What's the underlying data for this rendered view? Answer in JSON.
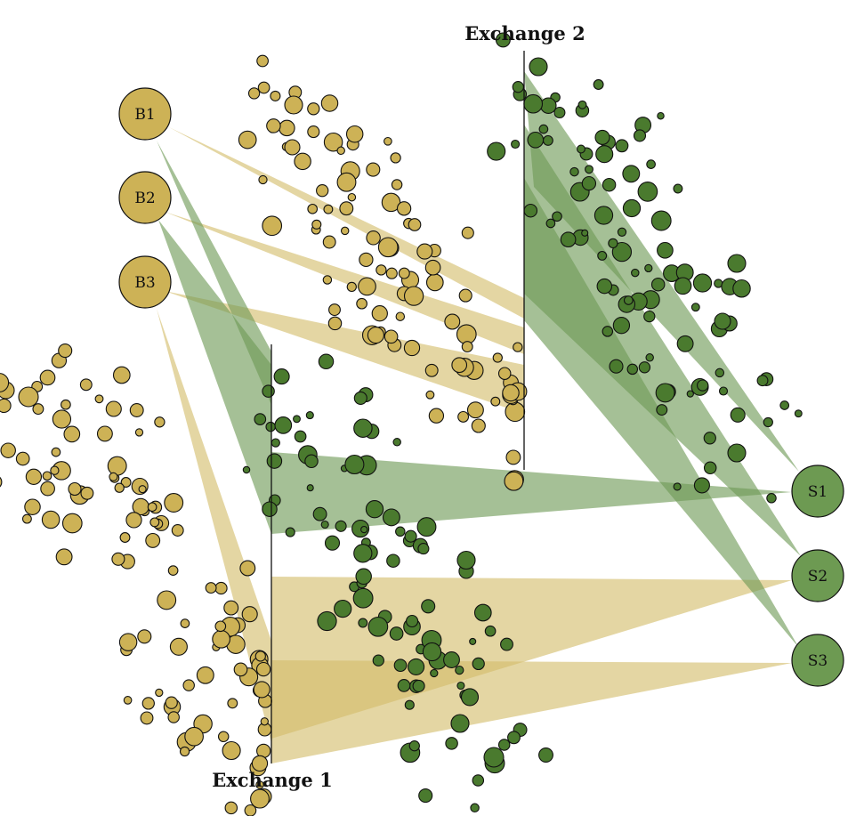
{
  "exchange1": {
    "label": "Exchange 1"
  },
  "exchange2": {
    "label": "Exchange 2"
  },
  "buyers": [
    {
      "id": "B1",
      "label": "B1"
    },
    {
      "id": "B2",
      "label": "B2"
    },
    {
      "id": "B3",
      "label": "B3"
    }
  ],
  "sellers": [
    {
      "id": "S1",
      "label": "S1"
    },
    {
      "id": "S2",
      "label": "S2"
    },
    {
      "id": "S3",
      "label": "S3"
    }
  ],
  "colors": {
    "buy_fill": "#cdb256",
    "buy_band": "#d4bd6a",
    "sell_fill": "#6d9a52",
    "sell_dot": "#4a7a2e",
    "sell_band": "#6e9a55"
  }
}
